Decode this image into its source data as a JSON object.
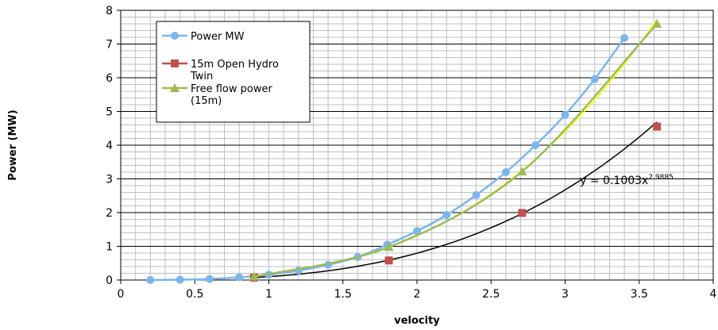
{
  "chart_data": {
    "type": "scatter",
    "title": "",
    "xlabel": "velocity",
    "ylabel": "Power (MW)",
    "xlim": [
      0,
      4
    ],
    "ylim": [
      0,
      8
    ],
    "x_ticks": [
      "0",
      "0.5",
      "1",
      "1.5",
      "2",
      "2.5",
      "3",
      "3.5",
      "4"
    ],
    "y_ticks": [
      "0",
      "1",
      "2",
      "3",
      "4",
      "5",
      "6",
      "7",
      "8"
    ],
    "grid": true,
    "legend_position": "top-left inside plot",
    "series": [
      {
        "name": "Power MW",
        "color": "#7cb5ec",
        "marker": "circle",
        "x": [
          0.2,
          0.4,
          0.6,
          0.8,
          1.0,
          1.2,
          1.4,
          1.6,
          1.8,
          2.0,
          2.2,
          2.4,
          2.6,
          2.8,
          3.0,
          3.2,
          3.4
        ],
        "y": [
          0.0,
          0.01,
          0.03,
          0.08,
          0.16,
          0.28,
          0.45,
          0.68,
          1.05,
          1.45,
          1.93,
          2.52,
          3.2,
          4.0,
          4.9,
          5.96,
          7.18
        ]
      },
      {
        "name": "15m Open Hydro Twin",
        "color": "#c0504d",
        "marker": "square",
        "x": [
          0.9,
          1.81,
          2.71,
          3.62
        ],
        "y": [
          0.07,
          0.58,
          1.99,
          4.55
        ]
      },
      {
        "name": "Free flow power (15m)",
        "color": "#9bbb59",
        "marker": "triangle",
        "x": [
          0.9,
          1.81,
          2.71,
          3.62
        ],
        "y": [
          0.1,
          0.98,
          3.22,
          7.6
        ]
      }
    ],
    "trendlines": [
      {
        "type": "power",
        "coefficient": 0.1003,
        "exponent": 2.9885,
        "x_range": [
          0.9,
          3.62
        ],
        "color": "#000000"
      },
      {
        "type": "power",
        "coefficient": 0.165,
        "exponent": 2.99,
        "x_range": [
          0.9,
          3.62
        ],
        "color": "#ffff00"
      }
    ],
    "annotations": [
      {
        "text_base": "y = 0.1003x",
        "text_sup": "2.9885",
        "x": 3.1,
        "y": 2.85
      }
    ]
  }
}
